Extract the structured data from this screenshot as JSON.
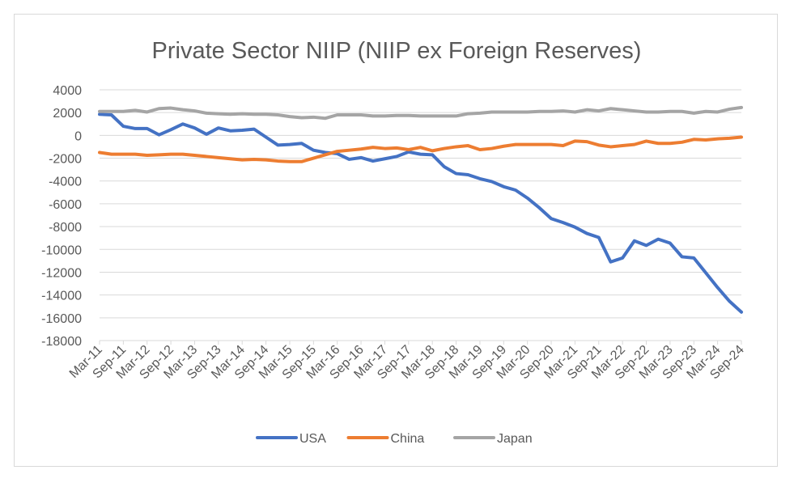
{
  "chart_data": {
    "type": "line",
    "title": "Private Sector NIIP  (NIIP ex Foreign Reserves)",
    "xlabel": "",
    "ylabel": "",
    "ylim": [
      -18000,
      4000
    ],
    "yticks": [
      4000,
      2000,
      0,
      -2000,
      -4000,
      -6000,
      -8000,
      -10000,
      -12000,
      -14000,
      -16000,
      -18000
    ],
    "ytick_labels": [
      "4000",
      "2000",
      "0",
      "-2000",
      "-4000",
      "-6000",
      "-8000",
      "-10000",
      "-12000",
      "-14000",
      "-16000",
      "-18000"
    ],
    "x_tick_labels": [
      "Mar-11",
      "Sep-11",
      "Mar-12",
      "Sep-12",
      "Mar-13",
      "Sep-13",
      "Mar-14",
      "Sep-14",
      "Mar-15",
      "Sep-15",
      "Mar-16",
      "Sep-16",
      "Mar-17",
      "Sep-17",
      "Mar-18",
      "Sep-18",
      "Mar-19",
      "Sep-19",
      "Mar-20",
      "Sep-20",
      "Mar-21",
      "Sep-21",
      "Mar-22",
      "Sep-22",
      "Mar-23",
      "Sep-23",
      "Mar-24",
      "Sep-24"
    ],
    "n_points": 55,
    "legend_position": "bottom",
    "grid": true,
    "series": [
      {
        "name": "USA",
        "color": "#4472C4",
        "values": [
          1850,
          1800,
          800,
          600,
          600,
          50,
          500,
          1000,
          650,
          100,
          650,
          400,
          450,
          550,
          -150,
          -850,
          -800,
          -700,
          -1300,
          -1500,
          -1600,
          -2100,
          -1950,
          -2250,
          -2050,
          -1850,
          -1450,
          -1650,
          -1700,
          -2750,
          -3350,
          -3450,
          -3800,
          -4050,
          -4500,
          -4800,
          -5500,
          -6350,
          -7300,
          -7650,
          -8050,
          -8600,
          -8950,
          -11100,
          -10750,
          -9250,
          -9650,
          -9100,
          -9450,
          -10650,
          -10750,
          -12050,
          -13350,
          -14550,
          -15500
        ]
      },
      {
        "name": "China",
        "color": "#ED7D31",
        "values": [
          -1500,
          -1650,
          -1650,
          -1650,
          -1750,
          -1700,
          -1650,
          -1650,
          -1750,
          -1850,
          -1950,
          -2050,
          -2150,
          -2100,
          -2150,
          -2250,
          -2300,
          -2300,
          -2000,
          -1700,
          -1400,
          -1300,
          -1200,
          -1050,
          -1150,
          -1100,
          -1250,
          -1050,
          -1350,
          -1150,
          -1000,
          -900,
          -1250,
          -1150,
          -950,
          -800,
          -800,
          -800,
          -800,
          -900,
          -500,
          -550,
          -850,
          -1000,
          -900,
          -800,
          -500,
          -700,
          -700,
          -600,
          -350,
          -400,
          -300,
          -250,
          -150
        ]
      },
      {
        "name": "Japan",
        "color": "#A5A5A5",
        "values": [
          2100,
          2100,
          2100,
          2200,
          2050,
          2350,
          2400,
          2250,
          2150,
          1950,
          1900,
          1850,
          1900,
          1850,
          1850,
          1800,
          1650,
          1550,
          1600,
          1500,
          1800,
          1800,
          1800,
          1700,
          1700,
          1750,
          1750,
          1700,
          1700,
          1700,
          1700,
          1900,
          1950,
          2050,
          2050,
          2050,
          2050,
          2100,
          2100,
          2150,
          2050,
          2250,
          2150,
          2350,
          2250,
          2150,
          2050,
          2050,
          2100,
          2100,
          1950,
          2100,
          2050,
          2300,
          2450
        ]
      }
    ]
  }
}
